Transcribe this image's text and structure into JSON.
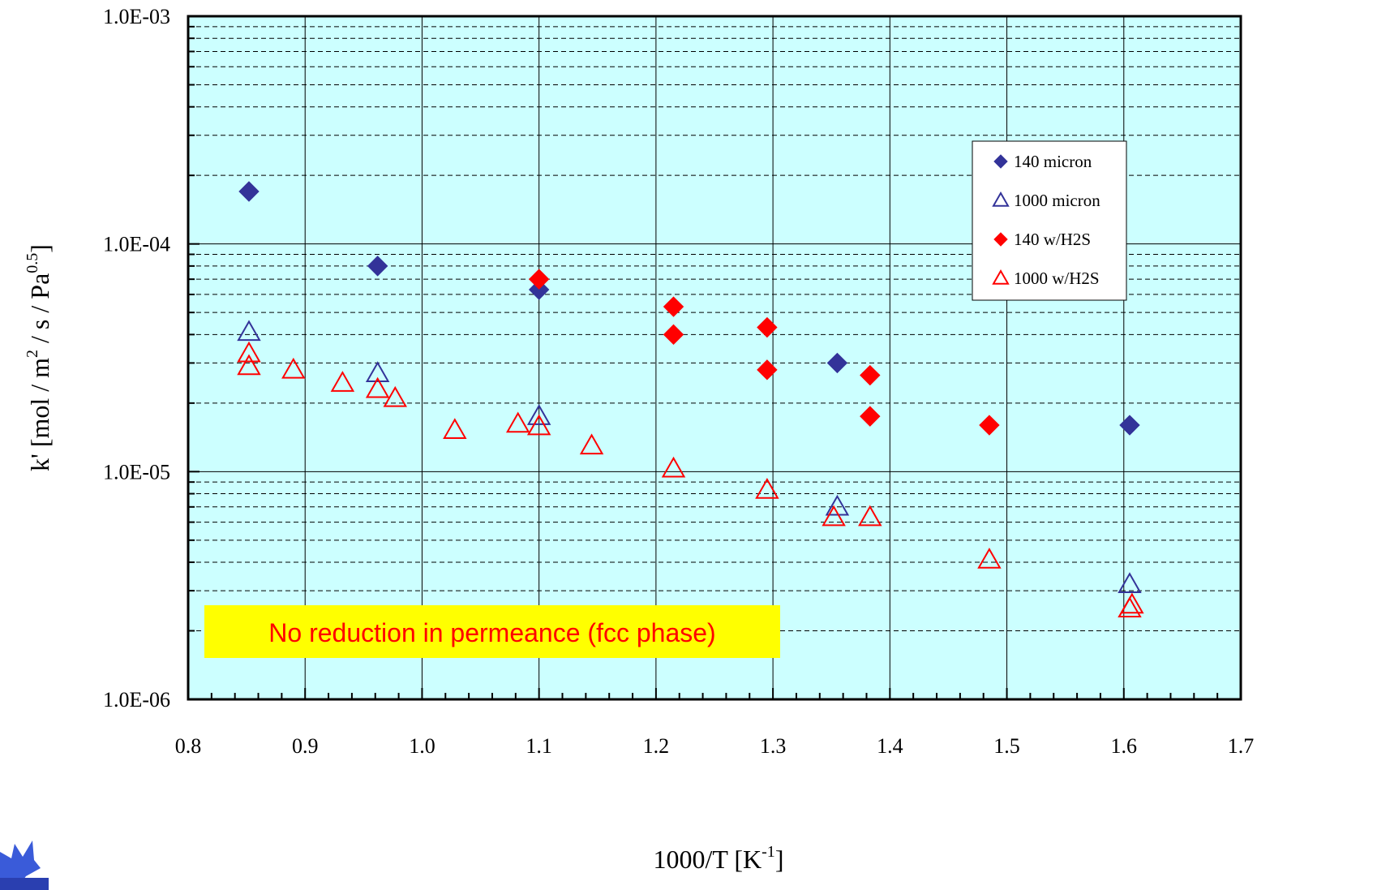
{
  "chart_data": {
    "type": "scatter",
    "xlabel": "1000/T [K",
    "xlabel_sup": "-1",
    "xlabel_close": "]",
    "ylabel": "k' [mol / m",
    "ylabel_sup1": "2",
    "ylabel_mid": " / s / Pa",
    "ylabel_sup2": "0.5",
    "ylabel_close": "]",
    "xlim": [
      0.8,
      1.7
    ],
    "ylim": [
      1e-06,
      0.001
    ],
    "yscale": "log",
    "x_ticks": [
      "0.8",
      "0.9",
      "1.0",
      "1.1",
      "1.2",
      "1.3",
      "1.4",
      "1.5",
      "1.6",
      "1.7"
    ],
    "y_ticks": [
      "1.0E-06",
      "1.0E-05",
      "1.0E-04",
      "1.0E-03"
    ],
    "grid": true,
    "background_color": "#ccffff",
    "legend_position": "top-right",
    "annotation": {
      "text": "No reduction in permeance (fcc phase)",
      "text_color": "#ff0000",
      "background": "#ffff00"
    },
    "series": [
      {
        "name": "140 micron",
        "marker": "diamond-filled",
        "color": "#333399",
        "points": [
          [
            0.852,
            0.00017
          ],
          [
            0.962,
            8e-05
          ],
          [
            1.1,
            6.3e-05
          ],
          [
            1.355,
            3e-05
          ],
          [
            1.605,
            1.6e-05
          ]
        ]
      },
      {
        "name": "1000 micron",
        "marker": "triangle-open",
        "color": "#333399",
        "points": [
          [
            0.852,
            4.1e-05
          ],
          [
            0.962,
            2.7e-05
          ],
          [
            1.1,
            1.75e-05
          ],
          [
            1.355,
            7e-06
          ],
          [
            1.605,
            3.2e-06
          ]
        ]
      },
      {
        "name": "140 w/H2S",
        "marker": "diamond-filled",
        "color": "#ff0000",
        "points": [
          [
            1.1,
            7e-05
          ],
          [
            1.215,
            5.3e-05
          ],
          [
            1.215,
            4e-05
          ],
          [
            1.295,
            4.3e-05
          ],
          [
            1.295,
            2.8e-05
          ],
          [
            1.383,
            2.65e-05
          ],
          [
            1.383,
            1.75e-05
          ],
          [
            1.485,
            1.6e-05
          ]
        ]
      },
      {
        "name": "1000 w/H2S",
        "marker": "triangle-open",
        "color": "#ff0000",
        "points": [
          [
            0.852,
            3.3e-05
          ],
          [
            0.852,
            2.9e-05
          ],
          [
            0.89,
            2.8e-05
          ],
          [
            0.932,
            2.45e-05
          ],
          [
            0.962,
            2.3e-05
          ],
          [
            0.977,
            2.1e-05
          ],
          [
            1.028,
            1.52e-05
          ],
          [
            1.082,
            1.62e-05
          ],
          [
            1.1,
            1.58e-05
          ],
          [
            1.145,
            1.3e-05
          ],
          [
            1.215,
            1.03e-05
          ],
          [
            1.295,
            8.3e-06
          ],
          [
            1.352,
            6.3e-06
          ],
          [
            1.383,
            6.3e-06
          ],
          [
            1.485,
            4.1e-06
          ],
          [
            1.605,
            2.5e-06
          ],
          [
            1.607,
            2.6e-06
          ]
        ]
      }
    ]
  }
}
